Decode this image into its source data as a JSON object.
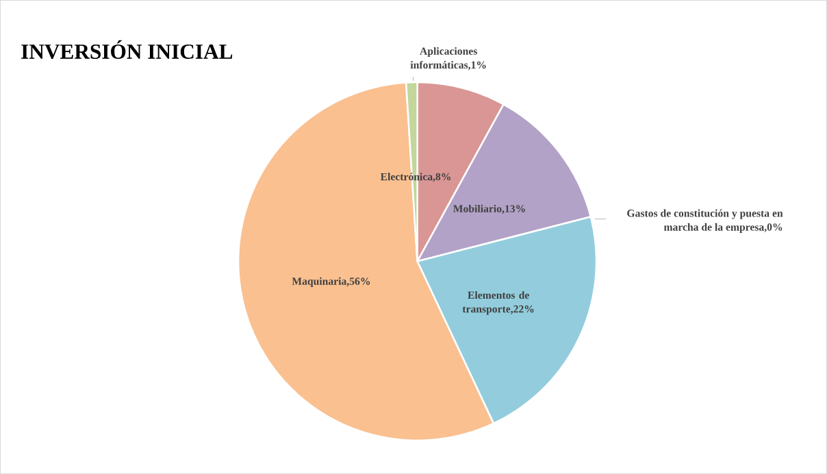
{
  "chart_data": {
    "type": "pie",
    "title": "INVERSIÓN INICIAL",
    "categories": [
      "Electrónica",
      "Mobiliario",
      "Gastos de constitución y puesta en marcha de la empresa",
      "Elementos de transporte",
      "Maquinaria",
      "Aplicaciones informáticas"
    ],
    "values": [
      8,
      13,
      0,
      22,
      56,
      1
    ],
    "value_labels": [
      ",8%",
      ",13%",
      ",0%",
      ",22%",
      ",56%",
      ",1%"
    ],
    "colors": [
      "#d99694",
      "#b3a2c7",
      "#4f81bd",
      "#93cddd",
      "#fac090",
      "#c3d69b"
    ]
  }
}
